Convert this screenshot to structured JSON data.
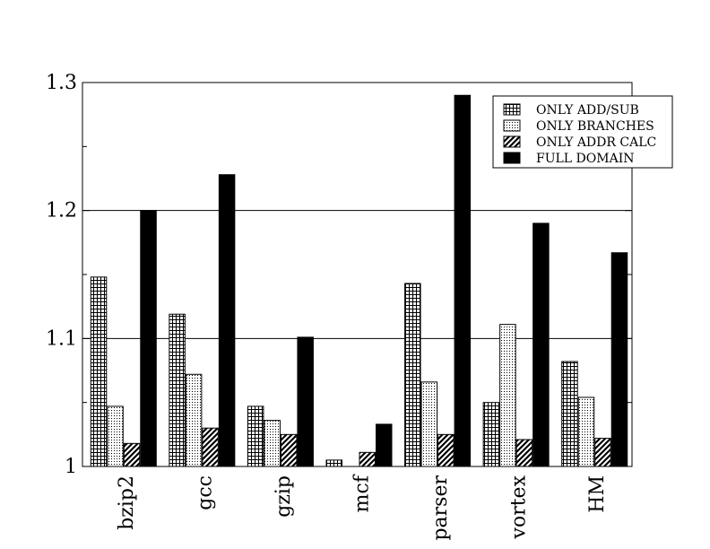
{
  "chart_data": {
    "type": "bar",
    "categories": [
      "bzip2",
      "gcc",
      "gzip",
      "mcf",
      "parser",
      "vortex",
      "HM"
    ],
    "series": [
      {
        "name": "ONLY ADD/SUB",
        "pattern": "grid",
        "values": [
          1.148,
          1.119,
          1.047,
          1.005,
          1.143,
          1.05,
          1.082
        ]
      },
      {
        "name": "ONLY BRANCHES",
        "pattern": "dots",
        "values": [
          1.047,
          1.072,
          1.036,
          1.0,
          1.066,
          1.111,
          1.054
        ]
      },
      {
        "name": "ONLY ADDR CALC",
        "pattern": "hatch",
        "values": [
          1.018,
          1.03,
          1.025,
          1.011,
          1.025,
          1.021,
          1.022
        ]
      },
      {
        "name": "FULL DOMAIN",
        "pattern": "solid",
        "values": [
          1.2,
          1.228,
          1.101,
          1.033,
          1.29,
          1.19,
          1.167
        ]
      }
    ],
    "ylim": [
      1.0,
      1.3
    ],
    "yticks": [
      1.0,
      1.1,
      1.2,
      1.3
    ],
    "ytick_labels": [
      "1",
      "1.1",
      "1.2",
      "1.3"
    ],
    "yminor_step": 0.05,
    "grid": true,
    "legend_position": "top-right",
    "title": "",
    "xlabel": "",
    "ylabel": ""
  }
}
